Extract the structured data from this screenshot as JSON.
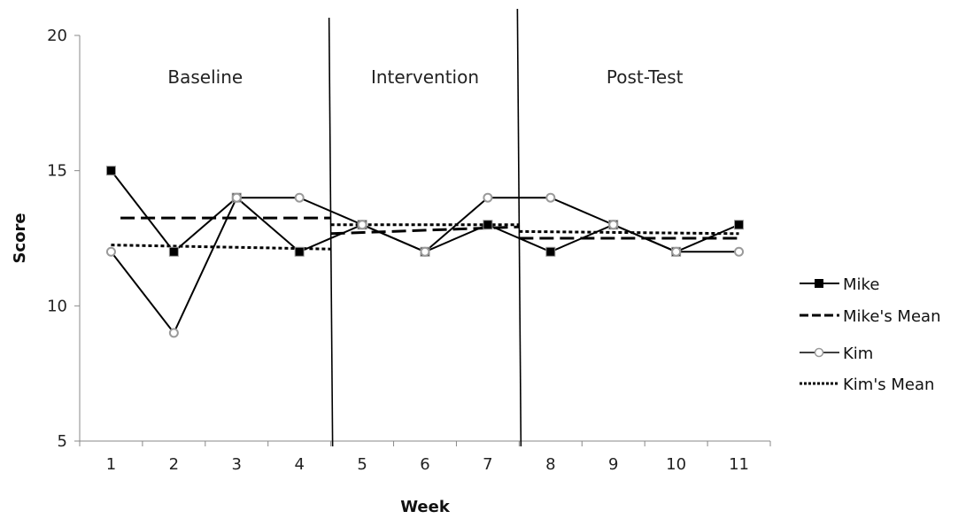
{
  "chart_data": {
    "type": "line",
    "title": "",
    "xlabel": "Week",
    "ylabel": "Score",
    "x": [
      1,
      2,
      3,
      4,
      5,
      6,
      7,
      8,
      9,
      10,
      11
    ],
    "x_tick_labels": [
      "1",
      "2",
      "3",
      "4",
      "5",
      "6",
      "7",
      "8",
      "9",
      "10",
      "11"
    ],
    "ylim": [
      5,
      20
    ],
    "y_ticks": [
      5,
      10,
      15,
      20
    ],
    "y_tick_labels": [
      "5",
      "10",
      "15",
      "20"
    ],
    "grid": false,
    "legend_position": "right",
    "series": [
      {
        "name": "Mike",
        "style": "solid-square-marker",
        "values": [
          15,
          12,
          14,
          12,
          13,
          12,
          13,
          12,
          13,
          12,
          13
        ]
      },
      {
        "name": "Kim",
        "style": "solid-circle-marker",
        "values": [
          12,
          9,
          14,
          14,
          13,
          12,
          14,
          14,
          13,
          12,
          12
        ]
      }
    ],
    "mean_lines": [
      {
        "name": "Mike's Mean",
        "style": "dashed",
        "segments": [
          {
            "x": [
              1.15,
              4.5
            ],
            "y": [
              13.25,
              13.25
            ]
          },
          {
            "x": [
              4.5,
              7.5
            ],
            "y": [
              12.67,
              12.92
            ]
          },
          {
            "x": [
              7.5,
              11
            ],
            "y": [
              12.5,
              12.5
            ]
          }
        ]
      },
      {
        "name": "Kim's Mean",
        "style": "dotted",
        "segments": [
          {
            "x": [
              1,
              4.5
            ],
            "y": [
              12.25,
              12.1
            ]
          },
          {
            "x": [
              4.5,
              7.5
            ],
            "y": [
              13.0,
              13.0
            ]
          },
          {
            "x": [
              7.5,
              11
            ],
            "y": [
              12.75,
              12.67
            ]
          }
        ]
      }
    ],
    "phases": [
      {
        "label": "Baseline",
        "start": 0.5,
        "end": 4.5
      },
      {
        "label": "Intervention",
        "start": 4.5,
        "end": 7.5
      },
      {
        "label": "Post-Test",
        "start": 7.5,
        "end": 11.5
      }
    ],
    "phase_dividers": [
      4.5,
      7.5
    ],
    "legend": [
      {
        "label": "Mike",
        "style": "solid-square-marker"
      },
      {
        "label": "Mike's Mean",
        "style": "dashed"
      },
      {
        "label": "Kim",
        "style": "solid-circle-marker"
      },
      {
        "label": "Kim's Mean",
        "style": "dotted"
      }
    ],
    "colors": {
      "line": "#000000",
      "marker_gray": "#9a9a9a",
      "circle_fill": "#ffffff"
    }
  }
}
